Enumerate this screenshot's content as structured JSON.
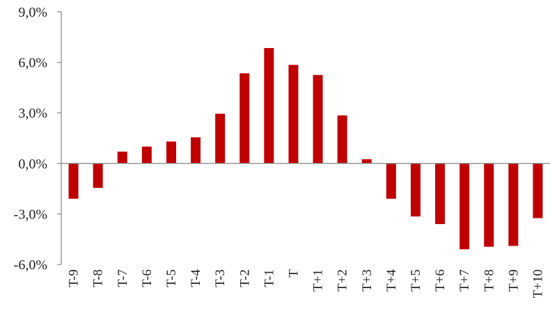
{
  "chart_data": {
    "type": "bar",
    "title": "",
    "xlabel": "",
    "ylabel": "",
    "categories": [
      "T-9",
      "T-8",
      "T-7",
      "T-6",
      "T-5",
      "T-4",
      "T-3",
      "T-2",
      "T-1",
      "T",
      "T+1",
      "T+2",
      "T+3",
      "T+4",
      "T+5",
      "T+6",
      "T+7",
      "T+8",
      "T+9",
      "T+10"
    ],
    "values": [
      -2.1,
      -1.45,
      0.7,
      1.0,
      1.3,
      1.55,
      2.95,
      5.35,
      6.85,
      5.85,
      5.25,
      2.85,
      0.25,
      -2.1,
      -3.15,
      -3.6,
      -5.1,
      -4.95,
      -4.9,
      -3.25
    ],
    "ylim": [
      -6.0,
      9.0
    ],
    "yticks": [
      -6.0,
      -3.0,
      0.0,
      3.0,
      6.0,
      9.0
    ],
    "ytick_labels": [
      "-6,0%",
      "-3,0%",
      "0,0%",
      "3,0%",
      "6,0%",
      "9,0%"
    ],
    "grid": false,
    "legend": "none",
    "bar_color": "#c00000",
    "axis_color": "#8c8c8c"
  }
}
